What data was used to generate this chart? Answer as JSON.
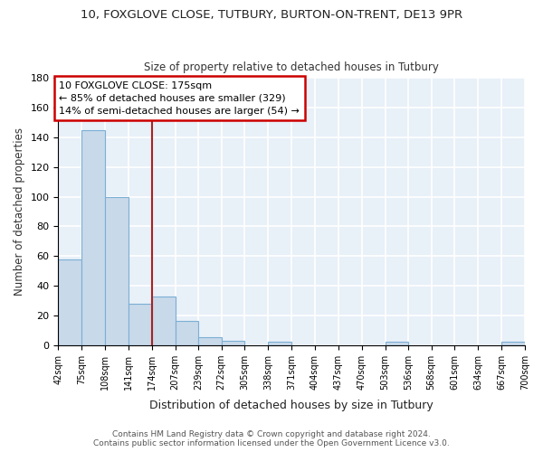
{
  "title_line1": "10, FOXGLOVE CLOSE, TUTBURY, BURTON-ON-TRENT, DE13 9PR",
  "title_line2": "Size of property relative to detached houses in Tutbury",
  "xlabel": "Distribution of detached houses by size in Tutbury",
  "ylabel": "Number of detached properties",
  "bin_labels": [
    "42sqm",
    "75sqm",
    "108sqm",
    "141sqm",
    "174sqm",
    "207sqm",
    "239sqm",
    "272sqm",
    "305sqm",
    "338sqm",
    "371sqm",
    "404sqm",
    "437sqm",
    "470sqm",
    "503sqm",
    "536sqm",
    "568sqm",
    "601sqm",
    "634sqm",
    "667sqm",
    "700sqm"
  ],
  "bar_heights": [
    58,
    145,
    100,
    28,
    33,
    16,
    5,
    3,
    0,
    2,
    0,
    0,
    0,
    0,
    2,
    0,
    0,
    0,
    0,
    2
  ],
  "bar_color": "#c8d9ea",
  "bar_edge_color": "#7bafd4",
  "vline_color": "#aa2222",
  "annotation_text": "10 FOXGLOVE CLOSE: 175sqm\n← 85% of detached houses are smaller (329)\n14% of semi-detached houses are larger (54) →",
  "annotation_box_color": "#ffffff",
  "annotation_border_color": "#cc0000",
  "ylim": [
    0,
    180
  ],
  "yticks": [
    0,
    20,
    40,
    60,
    80,
    100,
    120,
    140,
    160,
    180
  ],
  "background_color": "#e8f0f8",
  "footer_text": "Contains HM Land Registry data © Crown copyright and database right 2024.\nContains public sector information licensed under the Open Government Licence v3.0.",
  "grid_color": "#ffffff"
}
